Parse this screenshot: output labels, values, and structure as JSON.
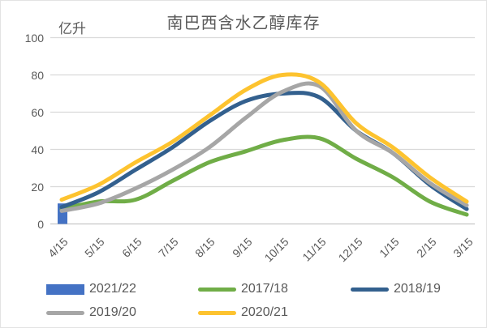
{
  "chart": {
    "title": "南巴西含水乙醇库存",
    "unit_label": "亿升",
    "colors": {
      "axis_text": "#595959",
      "title_text": "#595959",
      "gridline": "#D9D9D9",
      "axis_line": "#C6C6C6"
    },
    "chart_data": {
      "type": "line+bar",
      "title": "南巴西含水乙醇库存",
      "ylabel": "亿升",
      "categories": [
        "4/15",
        "5/15",
        "6/15",
        "7/15",
        "8/15",
        "9/15",
        "10/15",
        "11/15",
        "12/15",
        "1/15",
        "2/15",
        "3/15"
      ],
      "y_axis": {
        "min": 0,
        "max": 100,
        "tick_step": 20,
        "ticks": [
          0,
          20,
          40,
          60,
          80,
          100
        ]
      },
      "grid": "horizontal",
      "line_style": "smoothed",
      "series": [
        {
          "name": "2021/22",
          "type": "bar",
          "color": "#4472C4",
          "values": [
            11,
            null,
            null,
            null,
            null,
            null,
            null,
            null,
            null,
            null,
            null,
            null
          ]
        },
        {
          "name": "2017/18",
          "type": "line",
          "color": "#70AD47",
          "values": [
            8,
            12,
            13,
            23,
            33,
            39,
            45,
            46,
            35,
            25,
            12,
            5
          ]
        },
        {
          "name": "2018/19",
          "type": "line",
          "color": "#33608E",
          "values": [
            9,
            17,
            29,
            41,
            55,
            66,
            70,
            68,
            50,
            38,
            21,
            8
          ]
        },
        {
          "name": "2019/20",
          "type": "line",
          "color": "#A6A6A6",
          "values": [
            7,
            11,
            19,
            29,
            41,
            57,
            71,
            74,
            50,
            38,
            22,
            10
          ]
        },
        {
          "name": "2020/21",
          "type": "line",
          "color": "#FDC32F",
          "values": [
            13,
            21,
            33,
            44,
            58,
            72,
            80,
            76,
            54,
            41,
            25,
            12
          ]
        }
      ],
      "legend": {
        "position": "bottom",
        "rows": [
          [
            "2021/22",
            "2017/18",
            "2018/19"
          ],
          [
            "2019/20",
            "2020/21"
          ]
        ]
      }
    }
  }
}
